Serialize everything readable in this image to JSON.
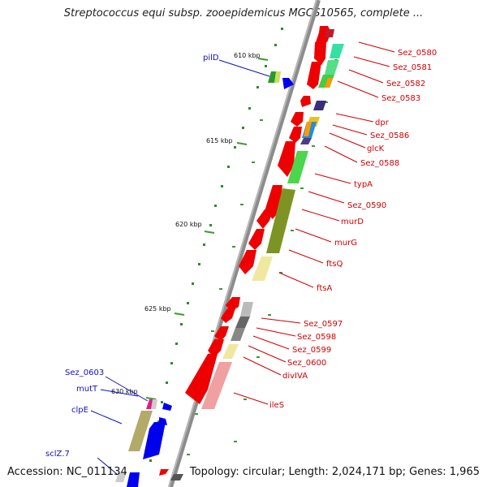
{
  "title": "Streptococcus equi subsp. zooepidemicus MGCS10565, complete ...",
  "footer": {
    "accession": "Accession: NC_011134",
    "summary": "Topology: circular; Length: 2,024,171 bp; Genes: 1,965"
  },
  "colors": {
    "backbone": "#8c8c8c",
    "tick": "#3c9a2c",
    "forward_gene": "#ee0000",
    "reverse_gene": "#0000ee",
    "right_label": "#d10000",
    "left_label": "#1010c0"
  },
  "kbp_ticks": [
    {
      "label": "610 kbp"
    },
    {
      "label": "615 kbp"
    },
    {
      "label": "620 kbp"
    },
    {
      "label": "625 kbp"
    },
    {
      "label": "630 kbp"
    }
  ],
  "right_gene_labels": [
    "Sez_0580",
    "Sez_0581",
    "Sez_0582",
    "Sez_0583",
    "dpr",
    "Sez_0586",
    "glcK",
    "Sez_0588",
    "typA",
    "Sez_0590",
    "murD",
    "murG",
    "ftsQ",
    "ftsA",
    "Sez_0597",
    "Sez_0598",
    "Sez_0599",
    "Sez_0600",
    "divIVA",
    "ileS"
  ],
  "left_gene_labels": [
    "pilD",
    "Sez_0603",
    "mutT",
    "clpE",
    "sclZ.7"
  ]
}
